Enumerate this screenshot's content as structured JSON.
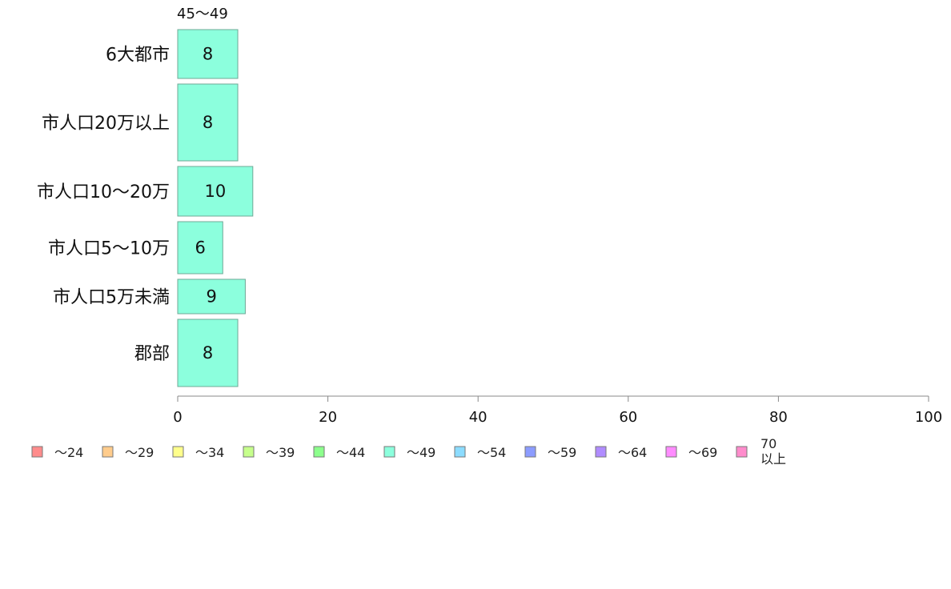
{
  "chart_data": {
    "type": "bar",
    "orientation": "horizontal",
    "stacked": true,
    "categories": [
      "6大都市",
      "市人口20万以上",
      "市人口10〜20万",
      "市人口5〜10万",
      "市人口5万未満",
      "郡部"
    ],
    "series": [
      {
        "name": "〜24",
        "color": "#ff8c8c",
        "values": [
          0,
          0,
          0,
          0,
          0,
          0
        ]
      },
      {
        "name": "〜29",
        "color": "#ffcc8c",
        "values": [
          0,
          0,
          0,
          0,
          0,
          0
        ]
      },
      {
        "name": "〜34",
        "color": "#ffff8c",
        "values": [
          0,
          0,
          0,
          0,
          0,
          0
        ]
      },
      {
        "name": "〜39",
        "color": "#c6ff8c",
        "values": [
          0,
          0,
          0,
          0,
          0,
          0
        ]
      },
      {
        "name": "〜44",
        "color": "#8cff8c",
        "values": [
          0,
          0,
          0,
          0,
          0,
          0
        ]
      },
      {
        "name": "〜49",
        "color": "#8cffdd",
        "values": [
          8,
          8,
          10,
          6,
          9,
          8
        ]
      },
      {
        "name": "〜54",
        "color": "#8cdcff",
        "values": [
          0,
          0,
          0,
          0,
          0,
          0
        ]
      },
      {
        "name": "〜59",
        "color": "#8c9cff",
        "values": [
          0,
          0,
          0,
          0,
          0,
          0
        ]
      },
      {
        "name": "〜64",
        "color": "#b08cff",
        "values": [
          0,
          0,
          0,
          0,
          0,
          0
        ]
      },
      {
        "name": "〜69",
        "color": "#ff8cff",
        "values": [
          0,
          0,
          0,
          0,
          0,
          0
        ]
      },
      {
        "name": "70\n以上",
        "color": "#ff8ccc",
        "values": [
          0,
          0,
          0,
          0,
          0,
          0
        ]
      }
    ],
    "series_label": "45〜49",
    "xlim": [
      0,
      100
    ],
    "xticks": [
      0,
      20,
      40,
      60,
      80,
      100
    ],
    "legend_position": "bottom",
    "grid": false
  }
}
